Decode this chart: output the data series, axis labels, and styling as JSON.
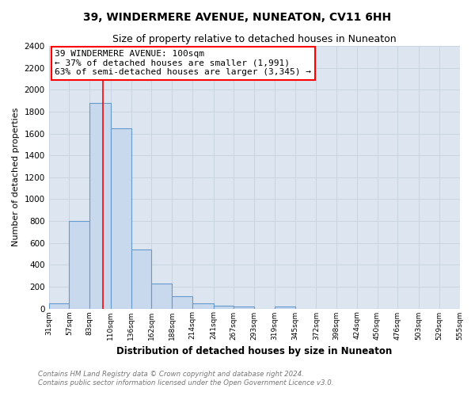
{
  "title1": "39, WINDERMERE AVENUE, NUNEATON, CV11 6HH",
  "title2": "Size of property relative to detached houses in Nuneaton",
  "xlabel": "Distribution of detached houses by size in Nuneaton",
  "ylabel": "Number of detached properties",
  "bin_edges": [
    31,
    57,
    83,
    110,
    136,
    162,
    188,
    214,
    241,
    267,
    293,
    319,
    345,
    372,
    398,
    424,
    450,
    476,
    503,
    529,
    555
  ],
  "bar_heights": [
    50,
    800,
    1880,
    1650,
    540,
    230,
    110,
    50,
    25,
    15,
    0,
    15,
    0,
    0,
    0,
    0,
    0,
    0,
    0,
    0
  ],
  "bar_color": "#c8d8ed",
  "bar_edge_color": "#6699cc",
  "grid_color": "#c8d4e0",
  "background_color": "#dde6f0",
  "fig_background": "#ffffff",
  "red_line_x": 100,
  "annotation_title": "39 WINDERMERE AVENUE: 100sqm",
  "annotation_line1": "← 37% of detached houses are smaller (1,991)",
  "annotation_line2": "63% of semi-detached houses are larger (3,345) →",
  "ylim": [
    0,
    2400
  ],
  "yticks": [
    0,
    200,
    400,
    600,
    800,
    1000,
    1200,
    1400,
    1600,
    1800,
    2000,
    2200,
    2400
  ],
  "footnote1": "Contains HM Land Registry data © Crown copyright and database right 2024.",
  "footnote2": "Contains public sector information licensed under the Open Government Licence v3.0."
}
